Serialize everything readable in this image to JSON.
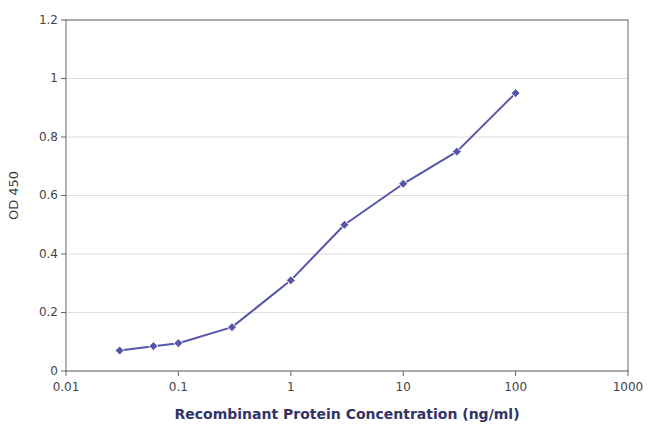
{
  "chart_data": {
    "type": "line",
    "x_label": "Recombinant Protein Concentration (ng/ml)",
    "y_label": "OD 450",
    "x": [
      0.03,
      0.06,
      0.1,
      0.3,
      1,
      3,
      10,
      30,
      100
    ],
    "values": [
      0.07,
      0.085,
      0.095,
      0.15,
      0.31,
      0.5,
      0.64,
      0.75,
      0.95
    ],
    "color": "#5555aa",
    "marker": "diamond",
    "log": "x",
    "xlim": [
      0.01,
      1000
    ],
    "xticks": [
      0.01,
      0.1,
      1,
      10,
      100,
      1000
    ],
    "ylim": [
      0,
      1.2
    ],
    "yticks": [
      0,
      0.2,
      0.4,
      0.6,
      0.8,
      1,
      1.2
    ],
    "grid": true
  }
}
